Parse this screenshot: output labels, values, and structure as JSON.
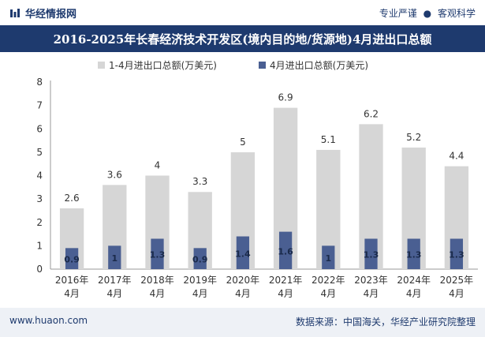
{
  "header": {
    "brand": "华经情报网",
    "slogan_left": "专业严谨",
    "slogan_sep": "●",
    "slogan_right": "客观科学"
  },
  "footer": {
    "website": "www.huaon.com",
    "source": "数据来源：中国海关，华经产业研究院整理"
  },
  "colors": {
    "series1": "#d6d6d6",
    "series2": "#4a5f92",
    "title_bg": "#1e3a6e"
  },
  "chart_data": {
    "type": "bar",
    "title": "2016-2025年长春经济技术开发区(境内目的地/货源地)4月进出口总额",
    "categories": [
      [
        "2016年",
        "4月"
      ],
      [
        "2017年",
        "4月"
      ],
      [
        "2018年",
        "4月"
      ],
      [
        "2019年",
        "4月"
      ],
      [
        "2020年",
        "4月"
      ],
      [
        "2021年",
        "4月"
      ],
      [
        "2022年",
        "4月"
      ],
      [
        "2023年",
        "4月"
      ],
      [
        "2024年",
        "4月"
      ],
      [
        "2025年",
        "4月"
      ]
    ],
    "series": [
      {
        "name": "1-4月进出口总额(万美元)",
        "values": [
          2.6,
          3.6,
          4,
          3.3,
          5,
          6.9,
          5.1,
          6.2,
          5.2,
          4.4
        ]
      },
      {
        "name": "4月进出口总额(万美元)",
        "values": [
          0.9,
          1,
          1.3,
          0.9,
          1.4,
          1.6,
          1,
          1.3,
          1.3,
          1.3
        ]
      }
    ],
    "yticks": [
      "0",
      "1",
      "2",
      "3",
      "4",
      "5",
      "6",
      "7",
      "8"
    ],
    "ylim": [
      0,
      8
    ],
    "legend_position": "top-center",
    "overlapping_bars": true
  }
}
